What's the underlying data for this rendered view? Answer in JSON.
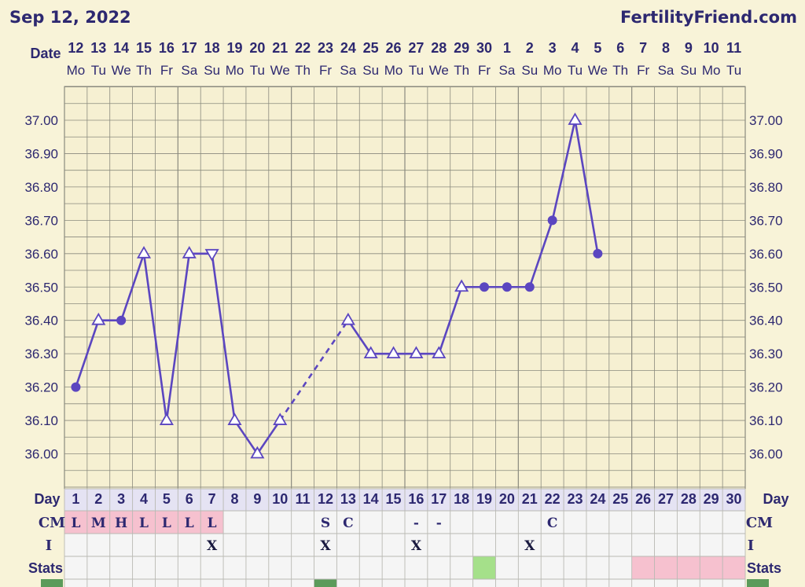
{
  "header": {
    "date": "Sep 12, 2022",
    "site": "FertilityFriend.com"
  },
  "colors": {
    "line": "#5b46c0",
    "text": "#2d2870",
    "bg": "#f8f3d8",
    "grid": "#8a8a7e",
    "pink": "#f6c1cf",
    "green_light": "#a5e08a",
    "green_dark": "#5b9b5b"
  },
  "chart_data": {
    "type": "line",
    "date_row_label": "Date",
    "dates": [
      "12",
      "13",
      "14",
      "15",
      "16",
      "17",
      "18",
      "19",
      "20",
      "21",
      "22",
      "23",
      "24",
      "25",
      "26",
      "27",
      "28",
      "29",
      "30",
      "1",
      "2",
      "3",
      "4",
      "5",
      "6",
      "7",
      "8",
      "9",
      "10",
      "11"
    ],
    "weekdays": [
      "Mo",
      "Tu",
      "We",
      "Th",
      "Fr",
      "Sa",
      "Su",
      "Mo",
      "Tu",
      "We",
      "Th",
      "Fr",
      "Sa",
      "Su",
      "Mo",
      "Tu",
      "We",
      "Th",
      "Fr",
      "Sa",
      "Su",
      "Mo",
      "Tu",
      "We",
      "Th",
      "Fr",
      "Sa",
      "Su",
      "Mo",
      "Tu"
    ],
    "y_ticks": [
      "37.00",
      "36.90",
      "36.80",
      "36.70",
      "36.60",
      "36.50",
      "36.40",
      "36.30",
      "36.20",
      "36.10",
      "36.00"
    ],
    "ylim": [
      35.95,
      37.1
    ],
    "grid": true,
    "temps": [
      {
        "day": 1,
        "value": 36.2,
        "marker": "dot"
      },
      {
        "day": 2,
        "value": 36.4,
        "marker": "tri-up"
      },
      {
        "day": 3,
        "value": 36.4,
        "marker": "dot"
      },
      {
        "day": 4,
        "value": 36.6,
        "marker": "tri-up"
      },
      {
        "day": 5,
        "value": 36.1,
        "marker": "tri-up"
      },
      {
        "day": 6,
        "value": 36.6,
        "marker": "tri-up"
      },
      {
        "day": 7,
        "value": 36.6,
        "marker": "tri-down"
      },
      {
        "day": 8,
        "value": 36.1,
        "marker": "tri-up"
      },
      {
        "day": 9,
        "value": 36.0,
        "marker": "tri-up"
      },
      {
        "day": 10,
        "value": 36.1,
        "marker": "tri-up"
      },
      {
        "day": 13,
        "value": 36.4,
        "marker": "tri-up"
      },
      {
        "day": 14,
        "value": 36.3,
        "marker": "tri-up"
      },
      {
        "day": 15,
        "value": 36.3,
        "marker": "tri-up"
      },
      {
        "day": 16,
        "value": 36.3,
        "marker": "tri-up"
      },
      {
        "day": 17,
        "value": 36.3,
        "marker": "tri-up"
      },
      {
        "day": 18,
        "value": 36.5,
        "marker": "tri-up"
      },
      {
        "day": 19,
        "value": 36.5,
        "marker": "dot"
      },
      {
        "day": 20,
        "value": 36.5,
        "marker": "dot"
      },
      {
        "day": 21,
        "value": 36.5,
        "marker": "dot"
      },
      {
        "day": 22,
        "value": 36.7,
        "marker": "dot"
      },
      {
        "day": 23,
        "value": 37.0,
        "marker": "tri-up"
      },
      {
        "day": 24,
        "value": 36.6,
        "marker": "dot"
      }
    ],
    "dashed_gap": {
      "from_day": 10,
      "to_day": 13
    },
    "day_row_label": "Day",
    "days": [
      "1",
      "2",
      "3",
      "4",
      "5",
      "6",
      "7",
      "8",
      "9",
      "10",
      "11",
      "12",
      "13",
      "14",
      "15",
      "16",
      "17",
      "18",
      "19",
      "20",
      "21",
      "22",
      "23",
      "24",
      "25",
      "26",
      "27",
      "28",
      "29",
      "30"
    ],
    "cm_label": "CM",
    "cm": [
      "L",
      "M",
      "H",
      "L",
      "L",
      "L",
      "L",
      "",
      "",
      "",
      "",
      "S",
      "C",
      "",
      "",
      "-",
      "-",
      "",
      "",
      "",
      "",
      "C",
      "",
      "",
      "",
      "",
      "",
      "",
      "",
      ""
    ],
    "cm_pink_days": [
      1,
      2,
      3,
      4,
      5,
      6,
      7
    ],
    "i_label": "I",
    "i": [
      "",
      "",
      "",
      "",
      "",
      "",
      "X",
      "",
      "",
      "",
      "",
      "X",
      "",
      "",
      "",
      "X",
      "",
      "",
      "",
      "",
      "X",
      "",
      "",
      "",
      "",
      "",
      "",
      "",
      "",
      ""
    ],
    "stats_label": "Stats",
    "stats_green_days": [
      19
    ],
    "stats_pink_days": [
      26,
      27,
      28,
      29,
      30
    ]
  }
}
